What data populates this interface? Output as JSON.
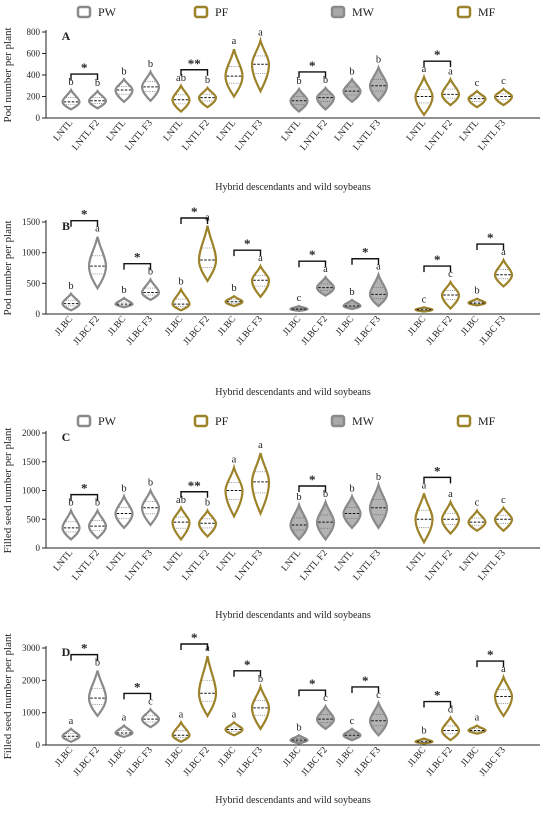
{
  "colors": {
    "PW": "#8a8a8a",
    "MW": "#8a8a8a",
    "PF": "#9c8228",
    "MF": "#9c8228",
    "axis": "#222222"
  },
  "legend": [
    {
      "name": "PW",
      "fill": "none",
      "color": "#8a8a8a"
    },
    {
      "name": "PF",
      "fill": "none",
      "color": "#9c8228"
    },
    {
      "name": "MW",
      "fill": "#a9a9a9",
      "color": "#8a8a8a"
    },
    {
      "name": "MF",
      "fill": "none",
      "color": "#9c8228"
    }
  ],
  "chart_data": [
    {
      "type": "violin",
      "panel": "A",
      "ylabel": "Pod number per plant",
      "xlabel": "Hybrid descendants and wild soybeans",
      "ylim": [
        0,
        800
      ],
      "yticks": [
        0,
        200,
        400,
        600,
        800
      ],
      "groups": [
        {
          "name": "PW",
          "categories": [
            "LNTL",
            "LNTL F2",
            "LNTL",
            "LNTL F3"
          ],
          "medians": [
            150,
            160,
            260,
            290
          ],
          "mins": [
            80,
            90,
            150,
            160
          ],
          "maxs": [
            260,
            250,
            360,
            430
          ],
          "letters": [
            "b",
            "b",
            "b",
            "b"
          ],
          "sig": [
            "*"
          ]
        },
        {
          "name": "PF",
          "categories": [
            "LNTL",
            "LNTL F2",
            "LNTL",
            "LNTL F3"
          ],
          "medians": [
            170,
            190,
            390,
            500
          ],
          "mins": [
            60,
            100,
            200,
            250
          ],
          "maxs": [
            300,
            280,
            640,
            720
          ],
          "letters": [
            "ab",
            "b",
            "a",
            "a"
          ],
          "sig": [
            "**"
          ]
        },
        {
          "name": "MW",
          "categories": [
            "LNTL",
            "LNTL F2",
            "LNTL",
            "LNTL F3"
          ],
          "medians": [
            160,
            190,
            250,
            300
          ],
          "mins": [
            60,
            80,
            150,
            160
          ],
          "maxs": [
            270,
            280,
            360,
            470
          ],
          "letters": [
            "b",
            "b",
            "b",
            "b"
          ],
          "sig": [
            "*"
          ]
        },
        {
          "name": "MF",
          "categories": [
            "LNTL",
            "LNTL F2",
            "LNTL",
            "LNTL F3"
          ],
          "medians": [
            200,
            220,
            180,
            200
          ],
          "mins": [
            30,
            120,
            100,
            120
          ],
          "maxs": [
            380,
            360,
            250,
            270
          ],
          "letters": [
            "a",
            "a",
            "c",
            "c"
          ],
          "sig": [
            "*"
          ]
        }
      ]
    },
    {
      "type": "violin",
      "panel": "B",
      "ylabel": "Pod number per plant",
      "xlabel": "Hybrid descendants and wild soybeans",
      "ylim": [
        0,
        1500
      ],
      "yticks": [
        0,
        500,
        1000,
        1500
      ],
      "groups": [
        {
          "name": "PW",
          "categories": [
            "JLBC",
            "JLBC F2",
            "JLBC",
            "JLBC F3"
          ],
          "medians": [
            170,
            780,
            160,
            350
          ],
          "mins": [
            60,
            420,
            110,
            230
          ],
          "maxs": [
            330,
            1260,
            260,
            560
          ],
          "letters": [
            "b",
            "a",
            "b",
            "b"
          ],
          "sig": [
            "*",
            "*"
          ]
        },
        {
          "name": "PF",
          "categories": [
            "JLBC",
            "JLBC F2",
            "JLBC",
            "JLBC F3"
          ],
          "medians": [
            160,
            880,
            200,
            550
          ],
          "mins": [
            60,
            540,
            130,
            280
          ],
          "maxs": [
            400,
            1440,
            290,
            780
          ],
          "letters": [
            "b",
            "a",
            "b",
            "a"
          ],
          "sig": [
            "*",
            "*"
          ]
        },
        {
          "name": "MW",
          "categories": [
            "JLBC",
            "JLBC F2",
            "JLBC",
            "JLBC F3"
          ],
          "medians": [
            80,
            430,
            130,
            320
          ],
          "mins": [
            50,
            300,
            80,
            130
          ],
          "maxs": [
            130,
            600,
            230,
            640
          ],
          "letters": [
            "c",
            "a",
            "b",
            "a"
          ],
          "sig": [
            "*",
            "*"
          ]
        },
        {
          "name": "MF",
          "categories": [
            "JLBC",
            "JLBC F2",
            "JLBC",
            "JLBC F3"
          ],
          "medians": [
            70,
            310,
            180,
            640
          ],
          "mins": [
            40,
            90,
            140,
            450
          ],
          "maxs": [
            110,
            520,
            250,
            880
          ],
          "letters": [
            "c",
            "c",
            "b",
            "a"
          ],
          "sig": [
            "*",
            "*"
          ]
        }
      ]
    },
    {
      "type": "violin",
      "panel": "C",
      "ylabel": "Filled seed number per plant",
      "xlabel": "Hybrid descendants and wild soybeans",
      "ylim": [
        0,
        2000
      ],
      "yticks": [
        0,
        500,
        1000,
        1500,
        2000
      ],
      "groups": [
        {
          "name": "PW",
          "categories": [
            "LNTL",
            "LNTL F2",
            "LNTL",
            "LNTL F3"
          ],
          "medians": [
            350,
            380,
            600,
            700
          ],
          "mins": [
            150,
            170,
            350,
            400
          ],
          "maxs": [
            650,
            650,
            900,
            1000
          ],
          "letters": [
            "b",
            "b",
            "b",
            "b"
          ],
          "sig": [
            "*"
          ]
        },
        {
          "name": "PF",
          "categories": [
            "LNTL",
            "LNTL F2",
            "LNTL",
            "LNTL F3"
          ],
          "medians": [
            450,
            430,
            1000,
            1150
          ],
          "mins": [
            150,
            200,
            550,
            600
          ],
          "maxs": [
            700,
            650,
            1400,
            1650
          ],
          "letters": [
            "ab",
            "b",
            "a",
            "a"
          ],
          "sig": [
            "**"
          ]
        },
        {
          "name": "MW",
          "categories": [
            "LNTL",
            "LNTL F2",
            "LNTL",
            "LNTL F3"
          ],
          "medians": [
            400,
            450,
            600,
            700
          ],
          "mins": [
            150,
            150,
            350,
            350
          ],
          "maxs": [
            750,
            800,
            900,
            1100
          ],
          "letters": [
            "b",
            "b",
            "b",
            "b"
          ],
          "sig": [
            "*"
          ]
        },
        {
          "name": "MF",
          "categories": [
            "LNTL",
            "LNTL F2",
            "LNTL",
            "LNTL F3"
          ],
          "medians": [
            500,
            500,
            450,
            500
          ],
          "mins": [
            100,
            250,
            300,
            300
          ],
          "maxs": [
            950,
            800,
            650,
            700
          ],
          "letters": [
            "a",
            "a",
            "c",
            "c"
          ],
          "sig": [
            "*"
          ]
        }
      ]
    },
    {
      "type": "violin",
      "panel": "D",
      "ylabel": "Filled seed number per plant",
      "xlabel": "Hybrid descendants and wild soybeans",
      "ylim": [
        0,
        3000
      ],
      "yticks": [
        0,
        1000,
        2000,
        3000
      ],
      "groups": [
        {
          "name": "PW",
          "categories": [
            "JLBC",
            "JLBC F2",
            "JLBC",
            "JLBC F3"
          ],
          "medians": [
            270,
            1450,
            370,
            800
          ],
          "mins": [
            100,
            900,
            250,
            550
          ],
          "maxs": [
            500,
            2300,
            600,
            1100
          ],
          "letters": [
            "a",
            "b",
            "a",
            "c"
          ],
          "sig": [
            "*",
            "*"
          ]
        },
        {
          "name": "PF",
          "categories": [
            "JLBC",
            "JLBC F2",
            "JLBC",
            "JLBC F3"
          ],
          "medians": [
            300,
            1600,
            480,
            1150
          ],
          "mins": [
            100,
            900,
            300,
            500
          ],
          "maxs": [
            700,
            2750,
            700,
            1800
          ],
          "letters": [
            "a",
            "a",
            "a",
            "b"
          ],
          "sig": [
            "*",
            "*"
          ]
        },
        {
          "name": "MW",
          "categories": [
            "JLBC",
            "JLBC F2",
            "JLBC",
            "JLBC F3"
          ],
          "medians": [
            150,
            800,
            300,
            750
          ],
          "mins": [
            50,
            500,
            150,
            300
          ],
          "maxs": [
            300,
            1200,
            500,
            1300
          ],
          "letters": [
            "b",
            "c",
            "c",
            "c"
          ],
          "sig": [
            "*",
            "*"
          ]
        },
        {
          "name": "MF",
          "categories": [
            "JLBC",
            "JLBC F2",
            "JLBC",
            "JLBC F3"
          ],
          "medians": [
            100,
            450,
            450,
            1500
          ],
          "mins": [
            50,
            150,
            350,
            900
          ],
          "maxs": [
            200,
            850,
            600,
            2100
          ],
          "letters": [
            "b",
            "d",
            "a",
            "a"
          ],
          "sig": [
            "*",
            "*"
          ]
        }
      ]
    }
  ]
}
